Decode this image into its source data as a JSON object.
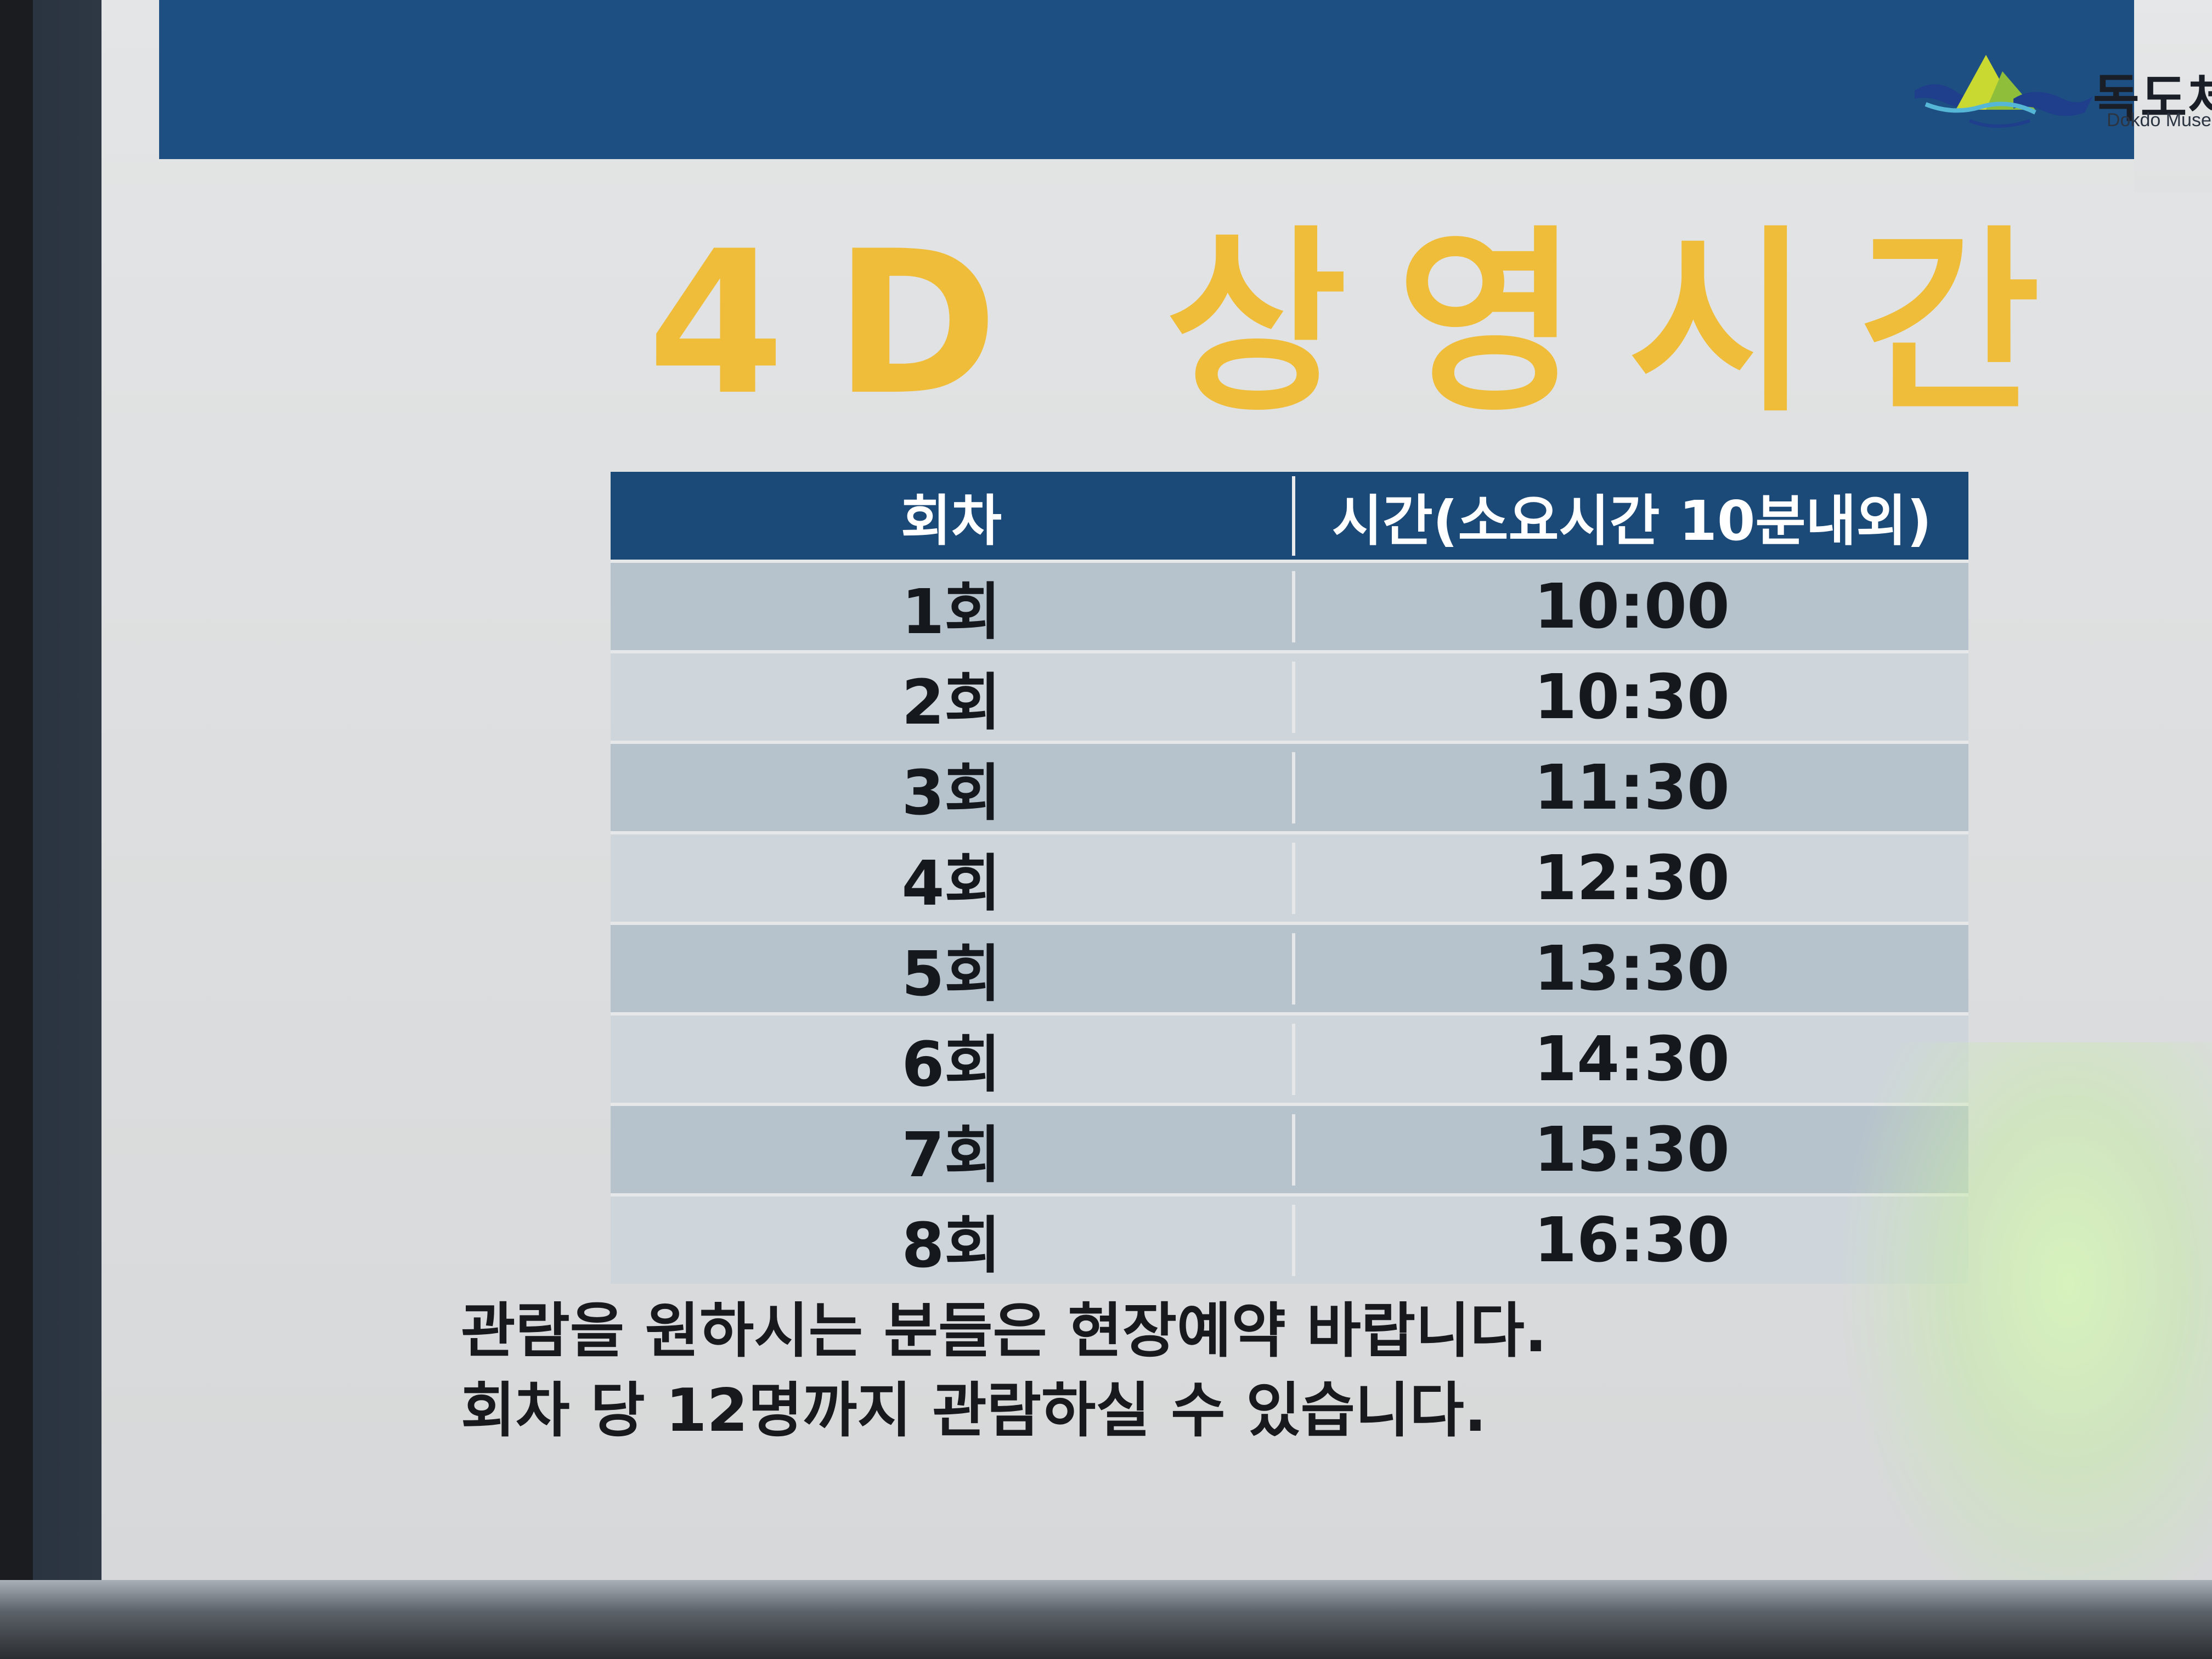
{
  "logo": {
    "name": "독도체",
    "sub": "Dokdo Museum"
  },
  "title": "4D 상영시간",
  "table": {
    "headers": [
      "회차",
      "시간(소요시간 10분내외)"
    ],
    "rows": [
      {
        "round": "1회",
        "time": "10:00"
      },
      {
        "round": "2회",
        "time": "10:30"
      },
      {
        "round": "3회",
        "time": "11:30"
      },
      {
        "round": "4회",
        "time": "12:30"
      },
      {
        "round": "5회",
        "time": "13:30"
      },
      {
        "round": "6회",
        "time": "14:30"
      },
      {
        "round": "7회",
        "time": "15:30"
      },
      {
        "round": "8회",
        "time": "16:30"
      }
    ]
  },
  "notes": [
    "관람을 원하시는 분들은 현장예약 바랍니다.",
    "회차 당 12명까지 관람하실 수 있습니다."
  ],
  "colors": {
    "banner": "#1d4f82",
    "title": "#f0bd3a",
    "row_dark": "#b7c3cc",
    "row_light": "#cfd6db"
  }
}
